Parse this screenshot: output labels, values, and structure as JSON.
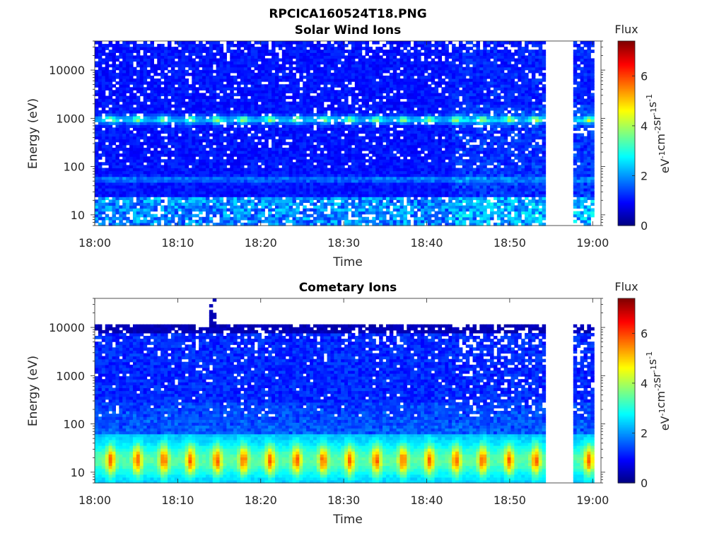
{
  "figure": {
    "title": "RPCICA160524T18.PNG"
  },
  "chart_data": [
    {
      "type": "heatmap",
      "title": "Solar Wind Ions",
      "xlabel": "Time",
      "ylabel": "Energy (eV)",
      "x_tick_labels": [
        "18:00",
        "18:10",
        "18:20",
        "18:30",
        "18:40",
        "18:50",
        "19:00"
      ],
      "x_ticks_minutes": [
        0,
        10,
        20,
        30,
        40,
        50,
        60
      ],
      "xlim_minutes": [
        0,
        61
      ],
      "y_scale": "log",
      "ylim": [
        6,
        40000
      ],
      "y_ticks": [
        10,
        100,
        1000,
        10000
      ],
      "y_tick_labels": [
        "10",
        "100",
        "1000",
        "10000"
      ],
      "data_gap_minutes": [
        54.5,
        57.6
      ],
      "features": {
        "main_band_energy_eV": 950,
        "main_band_flux": 3.4,
        "secondary_band_energy_eV": 55,
        "secondary_band_flux": 2.5,
        "low_energy_flux": 2.2,
        "background_flux": 0.8,
        "pulse_period_minutes": 3.2
      },
      "colorbar": {
        "label_top": "Flux",
        "label": "eV-1cm-2sr-1s-1",
        "label_parts": [
          {
            "t": "eV"
          },
          {
            "t": "-1",
            "sup": true
          },
          {
            "t": "cm"
          },
          {
            "t": "-2",
            "sup": true
          },
          {
            "t": "sr"
          },
          {
            "t": "-1",
            "sup": true
          },
          {
            "t": "s"
          },
          {
            "t": "-1",
            "sup": true
          }
        ],
        "range": [
          0,
          7.4
        ],
        "ticks": [
          0,
          2,
          4,
          6
        ],
        "tick_labels": [
          "0",
          "2",
          "4",
          "6"
        ],
        "colormap": "jet"
      }
    },
    {
      "type": "heatmap",
      "title": "Cometary Ions",
      "xlabel": "Time",
      "ylabel": "Energy (eV)",
      "x_tick_labels": [
        "18:00",
        "18:10",
        "18:20",
        "18:30",
        "18:40",
        "18:50",
        "19:00"
      ],
      "x_ticks_minutes": [
        0,
        10,
        20,
        30,
        40,
        50,
        60
      ],
      "xlim_minutes": [
        0,
        61
      ],
      "y_scale": "log",
      "ylim": [
        6,
        40000
      ],
      "y_ticks": [
        10,
        100,
        1000,
        10000
      ],
      "y_tick_labels": [
        "10",
        "100",
        "1000",
        "10000"
      ],
      "data_gap_minutes": [
        54.5,
        57.6
      ],
      "features": {
        "data_upper_energy_eV": 11000,
        "spike_minute": 14.0,
        "spike_top_energy_eV": 40000,
        "low_energy_band_eV": [
          6,
          60
        ],
        "low_energy_peak_flux": 5.3,
        "background_flux": 0.9,
        "pulse_period_minutes": 3.2
      },
      "colorbar": {
        "label_top": "Flux",
        "label": "eV-1cm-2sr-1s-1",
        "label_parts": [
          {
            "t": "eV"
          },
          {
            "t": "-1",
            "sup": true
          },
          {
            "t": "cm"
          },
          {
            "t": "-2",
            "sup": true
          },
          {
            "t": "sr"
          },
          {
            "t": "-1",
            "sup": true
          },
          {
            "t": "s"
          },
          {
            "t": "-1",
            "sup": true
          }
        ],
        "range": [
          0,
          7.4
        ],
        "ticks": [
          0,
          2,
          4,
          6
        ],
        "tick_labels": [
          "0",
          "2",
          "4",
          "6"
        ],
        "colormap": "jet"
      }
    }
  ]
}
